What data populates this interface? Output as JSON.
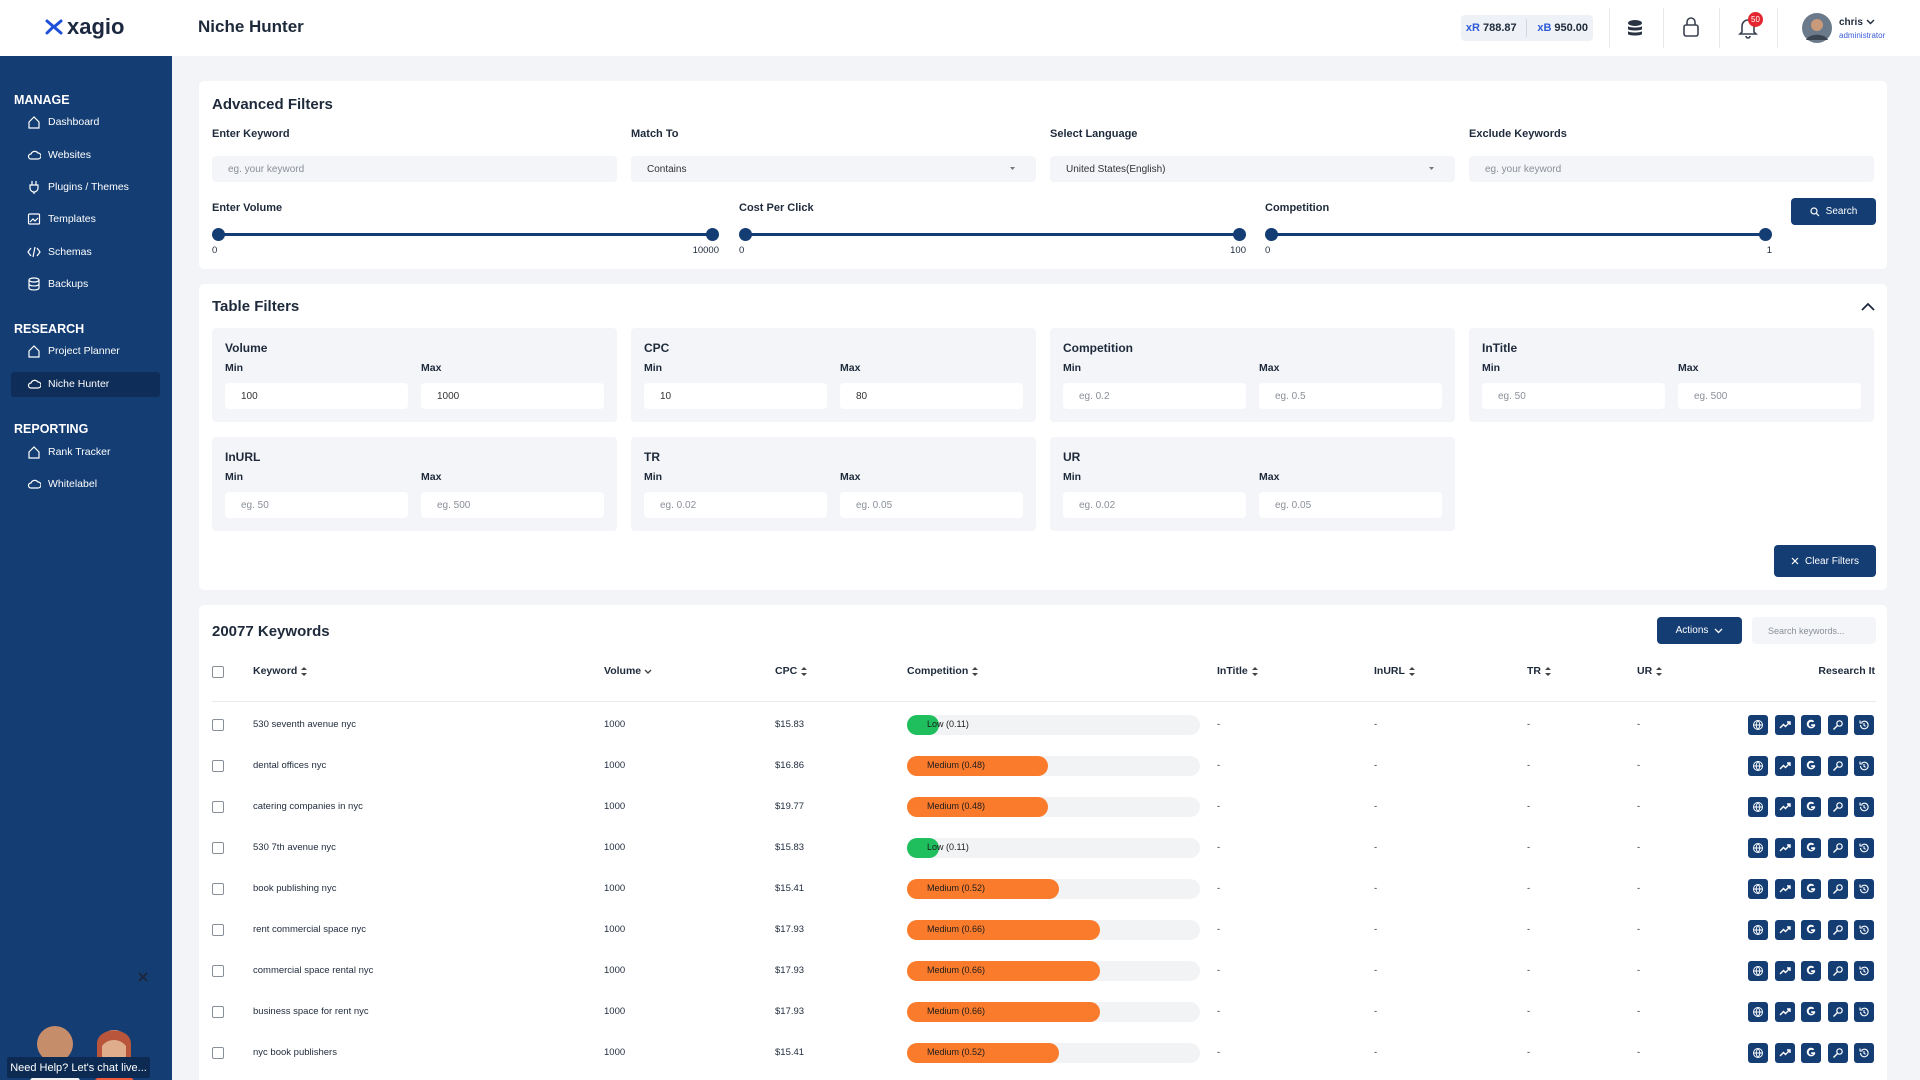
{
  "header": {
    "logo": "xagio",
    "title": "Niche Hunter",
    "credits": [
      {
        "unit": "xR",
        "amount": "788.87"
      },
      {
        "unit": "xB",
        "amount": "950.00"
      }
    ],
    "notifications": "50",
    "user": {
      "name": "chris",
      "role": "administrator"
    }
  },
  "sidebar": {
    "sections": [
      {
        "heading": "MANAGE",
        "items": [
          {
            "label": "Dashboard"
          },
          {
            "label": "Websites"
          },
          {
            "label": "Plugins / Themes"
          },
          {
            "label": "Templates"
          },
          {
            "label": "Schemas"
          },
          {
            "label": "Backups"
          }
        ]
      },
      {
        "heading": "RESEARCH",
        "items": [
          {
            "label": "Project Planner"
          },
          {
            "label": "Niche Hunter",
            "active": true
          }
        ]
      },
      {
        "heading": "REPORTING",
        "items": [
          {
            "label": "Rank Tracker"
          },
          {
            "label": "Whitelabel"
          }
        ]
      }
    ],
    "chat": "Need Help? Let's chat live..."
  },
  "advanced_filters": {
    "title": "Advanced Filters",
    "fields": [
      {
        "label": "Enter Keyword",
        "text": "eg. your keyword",
        "placeholder": true
      },
      {
        "label": "Match To",
        "text": "Contains",
        "dropdown": true
      },
      {
        "label": "Select Language",
        "text": "United States(English)",
        "dropdown": true
      },
      {
        "label": "Exclude Keywords",
        "text": "eg. your keyword",
        "placeholder": true
      }
    ],
    "sliders": [
      {
        "label": "Enter Volume",
        "min": "0",
        "max": "10000"
      },
      {
        "label": "Cost Per Click",
        "min": "0",
        "max": "100"
      },
      {
        "label": "Competition",
        "min": "0",
        "max": "1"
      }
    ],
    "search": "Search"
  },
  "table_filters": {
    "title": "Table Filters",
    "min_label": "Min",
    "max_label": "Max",
    "groups": [
      {
        "label": "Volume",
        "min": {
          "text": "100"
        },
        "max": {
          "text": "1000"
        }
      },
      {
        "label": "CPC",
        "min": {
          "text": "10"
        },
        "max": {
          "text": "80"
        }
      },
      {
        "label": "Competition",
        "min": {
          "text": "eg. 0.2",
          "placeholder": true
        },
        "max": {
          "text": "eg. 0.5",
          "placeholder": true
        }
      },
      {
        "label": "InTitle",
        "min": {
          "text": "eg. 50",
          "placeholder": true
        },
        "max": {
          "text": "eg. 500",
          "placeholder": true
        }
      },
      {
        "label": "InURL",
        "min": {
          "text": "eg. 50",
          "placeholder": true
        },
        "max": {
          "text": "eg. 500",
          "placeholder": true
        }
      },
      {
        "label": "TR",
        "min": {
          "text": "eg. 0.02",
          "placeholder": true
        },
        "max": {
          "text": "eg. 0.05",
          "placeholder": true
        }
      },
      {
        "label": "UR",
        "min": {
          "text": "eg. 0.02",
          "placeholder": true
        },
        "max": {
          "text": "eg. 0.05",
          "placeholder": true
        }
      }
    ],
    "clear": "Clear Filters"
  },
  "keywords": {
    "title": "20077 Keywords",
    "actions": "Actions",
    "search_placeholder": "Search keywords...",
    "columns": [
      {
        "label": "Keyword",
        "sort": "both"
      },
      {
        "label": "Volume",
        "sort": "desc"
      },
      {
        "label": "CPC",
        "sort": "both"
      },
      {
        "label": "Competition",
        "sort": "both"
      },
      {
        "label": "InTitle",
        "sort": "both"
      },
      {
        "label": "InURL",
        "sort": "both"
      },
      {
        "label": "TR",
        "sort": "both"
      },
      {
        "label": "UR",
        "sort": "both"
      },
      {
        "label": "Research It"
      }
    ],
    "rows": [
      {
        "keyword": "530 seventh avenue nyc",
        "volume": "1000",
        "cpc": "$15.83",
        "competition": 0.11,
        "competition_label": "Low (0.11)",
        "color": "#1fbf5e",
        "intitle": "-",
        "inurl": "-",
        "tr": "-",
        "ur": "-"
      },
      {
        "keyword": "dental offices nyc",
        "volume": "1000",
        "cpc": "$16.86",
        "competition": 0.48,
        "competition_label": "Medium (0.48)",
        "color": "#fb7b2c",
        "intitle": "-",
        "inurl": "-",
        "tr": "-",
        "ur": "-"
      },
      {
        "keyword": "catering companies in nyc",
        "volume": "1000",
        "cpc": "$19.77",
        "competition": 0.48,
        "competition_label": "Medium (0.48)",
        "color": "#fb7b2c",
        "intitle": "-",
        "inurl": "-",
        "tr": "-",
        "ur": "-"
      },
      {
        "keyword": "530 7th avenue nyc",
        "volume": "1000",
        "cpc": "$15.83",
        "competition": 0.11,
        "competition_label": "Low (0.11)",
        "color": "#1fbf5e",
        "intitle": "-",
        "inurl": "-",
        "tr": "-",
        "ur": "-"
      },
      {
        "keyword": "book publishing nyc",
        "volume": "1000",
        "cpc": "$15.41",
        "competition": 0.52,
        "competition_label": "Medium (0.52)",
        "color": "#fb7b2c",
        "intitle": "-",
        "inurl": "-",
        "tr": "-",
        "ur": "-"
      },
      {
        "keyword": "rent commercial space nyc",
        "volume": "1000",
        "cpc": "$17.93",
        "competition": 0.66,
        "competition_label": "Medium (0.66)",
        "color": "#fb7b2c",
        "intitle": "-",
        "inurl": "-",
        "tr": "-",
        "ur": "-"
      },
      {
        "keyword": "commercial space rental nyc",
        "volume": "1000",
        "cpc": "$17.93",
        "competition": 0.66,
        "competition_label": "Medium (0.66)",
        "color": "#fb7b2c",
        "intitle": "-",
        "inurl": "-",
        "tr": "-",
        "ur": "-"
      },
      {
        "keyword": "business space for rent nyc",
        "volume": "1000",
        "cpc": "$17.93",
        "competition": 0.66,
        "competition_label": "Medium (0.66)",
        "color": "#fb7b2c",
        "intitle": "-",
        "inurl": "-",
        "tr": "-",
        "ur": "-"
      },
      {
        "keyword": "nyc book publishers",
        "volume": "1000",
        "cpc": "$15.41",
        "competition": 0.52,
        "competition_label": "Medium (0.52)",
        "color": "#fb7b2c",
        "intitle": "-",
        "inurl": "-",
        "tr": "-",
        "ur": "-"
      }
    ]
  }
}
